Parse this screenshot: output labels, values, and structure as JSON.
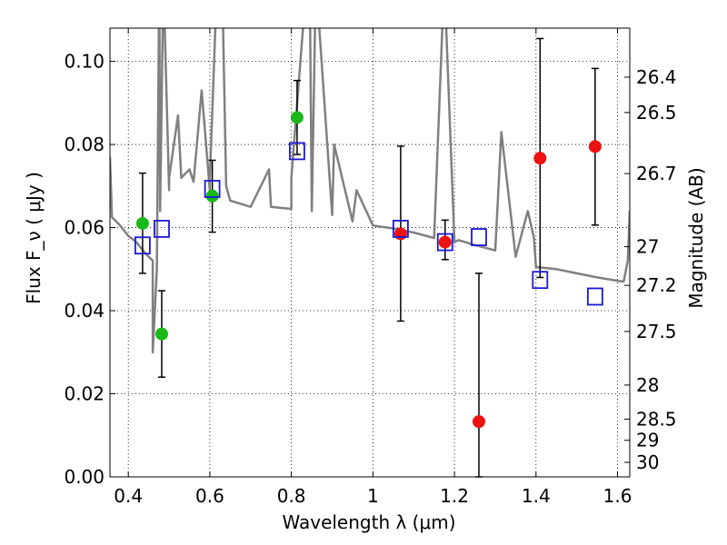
{
  "chart_data": {
    "type": "scatter",
    "xlabel": "Wavelength  λ (μm)",
    "ylabel": "Flux  F_ν  ( μJy )",
    "ylabel_right": "Magnitude (AB)",
    "xlim": [
      0.355,
      1.63
    ],
    "ylim": [
      0.0,
      0.108
    ],
    "grid": true,
    "x_ticks": [
      0.4,
      0.6,
      0.8,
      1.0,
      1.2,
      1.4,
      1.6
    ],
    "x_tick_labels": [
      "0.4",
      "0.6",
      "0.8",
      "1",
      "1.2",
      "1.4",
      "1.6"
    ],
    "y_ticks": [
      0.0,
      0.02,
      0.04,
      0.06,
      0.08,
      0.1
    ],
    "y_tick_labels": [
      "0.00",
      "0.02",
      "0.04",
      "0.06",
      "0.08",
      "0.10"
    ],
    "right_ticks": [
      {
        "label": "26.4",
        "flux": 0.0962
      },
      {
        "label": "26.5",
        "flux": 0.0877
      },
      {
        "label": "26.7",
        "flux": 0.073
      },
      {
        "label": "27",
        "flux": 0.0554
      },
      {
        "label": "27.2",
        "flux": 0.0461
      },
      {
        "label": "27.5",
        "flux": 0.035
      },
      {
        "label": "28",
        "flux": 0.0221
      },
      {
        "label": "28.5",
        "flux": 0.0139
      },
      {
        "label": "29",
        "flux": 0.0088
      },
      {
        "label": "30",
        "flux": 0.0035
      }
    ],
    "series": [
      {
        "color": "#18b918",
        "marker": "circle",
        "points": [
          {
            "x": 0.435,
            "y": 0.061,
            "lo": 0.049,
            "hi": 0.0731
          },
          {
            "x": 0.482,
            "y": 0.0344,
            "lo": 0.024,
            "hi": 0.0448
          },
          {
            "x": 0.606,
            "y": 0.0676,
            "lo": 0.0589,
            "hi": 0.0762
          },
          {
            "x": 0.814,
            "y": 0.0865,
            "lo": 0.0776,
            "hi": 0.0954
          }
        ]
      },
      {
        "color": "#ee1111",
        "marker": "circle",
        "points": [
          {
            "x": 1.068,
            "y": 0.0585,
            "lo": 0.0375,
            "hi": 0.0796
          },
          {
            "x": 1.177,
            "y": 0.0565,
            "lo": 0.0523,
            "hi": 0.0618
          },
          {
            "x": 1.26,
            "y": 0.0133,
            "lo": 0.0,
            "hi": 0.049
          },
          {
            "x": 1.41,
            "y": 0.0767,
            "lo": 0.048,
            "hi": 0.1055
          },
          {
            "x": 1.545,
            "y": 0.0795,
            "lo": 0.0606,
            "hi": 0.0983
          }
        ]
      },
      {
        "color": "#1a1ad6",
        "marker": "open-square",
        "points": [
          {
            "x": 0.435,
            "y": 0.0557
          },
          {
            "x": 0.482,
            "y": 0.0597
          },
          {
            "x": 0.606,
            "y": 0.0693
          },
          {
            "x": 0.814,
            "y": 0.0784
          },
          {
            "x": 1.068,
            "y": 0.0597
          },
          {
            "x": 1.177,
            "y": 0.0565
          },
          {
            "x": 1.26,
            "y": 0.0577
          },
          {
            "x": 1.41,
            "y": 0.0474
          },
          {
            "x": 1.545,
            "y": 0.0434
          }
        ]
      }
    ],
    "sed_curve": {
      "color": "#808080",
      "continuum": [
        [
          0.355,
          0.077
        ],
        [
          0.36,
          0.0625
        ],
        [
          0.38,
          0.0605
        ],
        [
          0.4,
          0.058
        ],
        [
          0.42,
          0.0565
        ],
        [
          0.44,
          0.054
        ],
        [
          0.46,
          0.052
        ],
        [
          0.47,
          0.05
        ],
        [
          0.478,
          0.064
        ],
        [
          0.5,
          0.069
        ],
        [
          0.53,
          0.072
        ],
        [
          0.56,
          0.071
        ],
        [
          0.6,
          0.069
        ],
        [
          0.65,
          0.0665
        ],
        [
          0.7,
          0.065
        ],
        [
          0.75,
          0.065
        ],
        [
          0.8,
          0.0645
        ],
        [
          0.85,
          0.064
        ],
        [
          0.9,
          0.063
        ],
        [
          0.95,
          0.0615
        ],
        [
          1.0,
          0.0605
        ],
        [
          1.05,
          0.0598
        ],
        [
          1.1,
          0.0588
        ],
        [
          1.15,
          0.0575
        ],
        [
          1.2,
          0.0565
        ],
        [
          1.25,
          0.0558
        ],
        [
          1.3,
          0.0545
        ],
        [
          1.35,
          0.053
        ],
        [
          1.4,
          0.0505
        ],
        [
          1.45,
          0.05
        ],
        [
          1.5,
          0.049
        ],
        [
          1.55,
          0.048
        ],
        [
          1.6,
          0.0472
        ],
        [
          1.615,
          0.047
        ],
        [
          1.625,
          0.052
        ],
        [
          1.63,
          0.064
        ]
      ],
      "lines": [
        [
          0.46,
          0.03
        ],
        [
          0.476,
          0.12
        ],
        [
          0.486,
          0.12
        ],
        [
          0.5,
          0.072
        ],
        [
          0.522,
          0.087
        ],
        [
          0.55,
          0.074
        ],
        [
          0.58,
          0.093
        ],
        [
          0.6,
          0.072
        ],
        [
          0.618,
          0.12
        ],
        [
          0.624,
          0.12
        ],
        [
          0.63,
          0.12
        ],
        [
          0.64,
          0.07
        ],
        [
          0.745,
          0.074
        ],
        [
          0.8,
          0.072
        ],
        [
          0.838,
          0.12
        ],
        [
          0.845,
          0.12
        ],
        [
          0.86,
          0.12
        ],
        [
          0.905,
          0.08
        ],
        [
          0.96,
          0.069
        ],
        [
          1.175,
          0.12
        ],
        [
          1.21,
          0.057
        ],
        [
          1.315,
          0.083
        ],
        [
          1.38,
          0.064
        ],
        [
          1.395,
          0.0575
        ]
      ]
    }
  }
}
